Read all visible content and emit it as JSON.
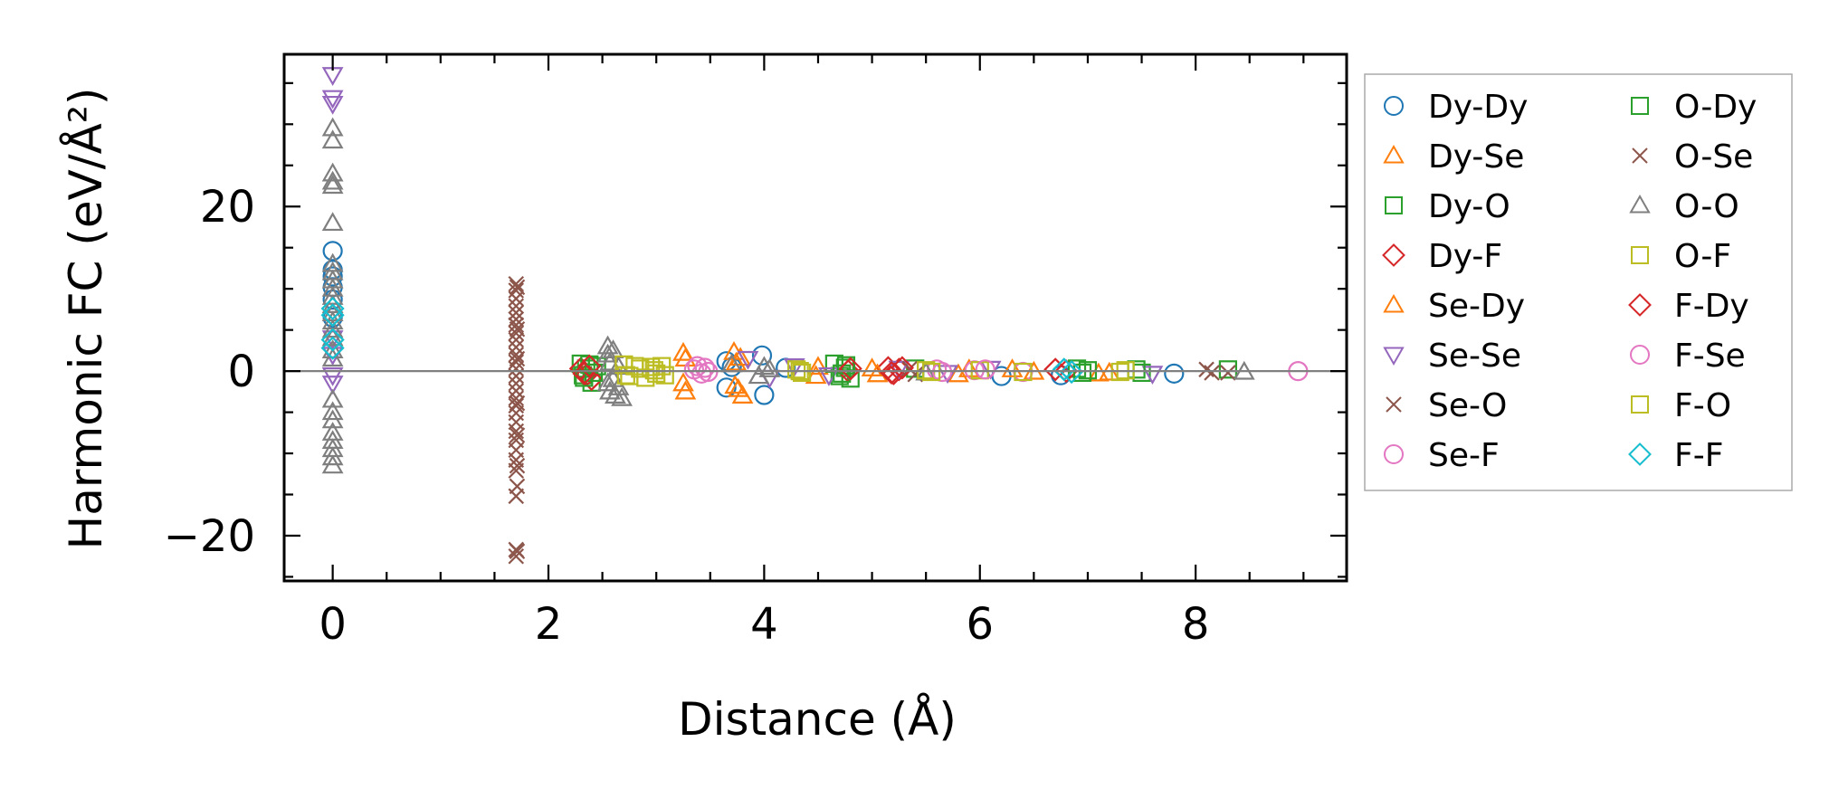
{
  "chart_data": {
    "type": "scatter",
    "xlabel": "Distance (Å)",
    "ylabel": "Harmonic FC (eV/Å²)",
    "xlim": [
      -0.45,
      9.4
    ],
    "ylim": [
      -25.5,
      38.5
    ],
    "xticks": [
      0,
      2,
      4,
      6,
      8
    ],
    "xtick_labels": [
      "0",
      "2",
      "4",
      "6",
      "8"
    ],
    "yticks": [
      -20,
      0,
      20
    ],
    "ytick_labels": [
      "−20",
      "0",
      "20"
    ],
    "grid": false,
    "zero_line": true,
    "legend_position": "outside-right",
    "legend_columns": 2,
    "series": [
      {
        "name": "Dy-Dy",
        "marker": "circle",
        "color": "#1f77b4",
        "x": [
          0,
          0,
          0,
          0,
          0,
          0,
          3.65,
          3.65,
          3.7,
          3.98,
          4.0,
          4.2,
          6.2,
          6.75,
          7.8
        ],
        "y": [
          14.6,
          12.3,
          11.5,
          10.2,
          8.7,
          6.5,
          1.2,
          -2.0,
          0.5,
          1.9,
          -2.9,
          0.4,
          -0.6,
          -0.5,
          -0.3
        ]
      },
      {
        "name": "Dy-Se",
        "marker": "triangle-up",
        "color": "#ff7f0e",
        "x": [
          3.25,
          3.25,
          3.27,
          3.72,
          3.74,
          3.76,
          3.8,
          4.5,
          5.0,
          5.8,
          6.3,
          7.1
        ],
        "y": [
          2.2,
          -1.5,
          -2.5,
          2.3,
          1.0,
          -2.2,
          -3.0,
          0.5,
          0.3,
          -0.4,
          0.2,
          -0.3
        ]
      },
      {
        "name": "Dy-O",
        "marker": "square",
        "color": "#2ca02c",
        "x": [
          2.3,
          2.32,
          2.35,
          2.4,
          2.45,
          4.65,
          4.7,
          4.75,
          4.8,
          5.4,
          6.9,
          7.0,
          7.5,
          8.3
        ],
        "y": [
          0.9,
          -0.5,
          0.3,
          -1.4,
          0.6,
          0.9,
          -0.6,
          0.4,
          -0.9,
          0.3,
          0.3,
          0.1,
          -0.2,
          0.2
        ]
      },
      {
        "name": "Dy-F",
        "marker": "diamond",
        "color": "#d62728",
        "x": [
          2.3,
          2.35,
          2.4,
          4.78,
          5.15,
          5.2,
          5.25,
          6.8
        ],
        "y": [
          0.3,
          -0.5,
          -1.0,
          0.0,
          0.4,
          -0.3,
          0.2,
          0.0
        ]
      },
      {
        "name": "Se-Dy",
        "marker": "triangle-up",
        "color": "#ff7f0e",
        "x": [
          3.27,
          3.73,
          3.78,
          4.48,
          5.05,
          5.9,
          6.5,
          7.2
        ],
        "y": [
          1.5,
          -1.8,
          1.6,
          -0.6,
          -0.4,
          0.2,
          -0.1,
          -0.2
        ]
      },
      {
        "name": "Se-Se",
        "marker": "triangle-down",
        "color": "#9467bd",
        "x": [
          0,
          0,
          0,
          0,
          0,
          0,
          0,
          3.85,
          4.05,
          4.28,
          4.6,
          5.25,
          5.7,
          6.1,
          7.6
        ],
        "y": [
          36.0,
          33.2,
          32.5,
          4.0,
          2.0,
          -0.5,
          -1.5,
          1.5,
          -0.8,
          0.6,
          -0.5,
          0.3,
          -0.2,
          0.3,
          -0.3
        ]
      },
      {
        "name": "Se-O",
        "marker": "x",
        "color": "#8c564b",
        "x": [
          1.7,
          1.7,
          1.7,
          1.7,
          1.7,
          1.7,
          1.7,
          1.7,
          1.7,
          1.7,
          1.7,
          1.7,
          1.7,
          1.7,
          1.7,
          1.7,
          1.7,
          1.7,
          1.7,
          1.7,
          1.7,
          1.7,
          1.7,
          1.7,
          1.7,
          1.7,
          1.7,
          1.7,
          5.4,
          8.1,
          8.3
        ],
        "y": [
          10.6,
          9.8,
          8.8,
          7.9,
          7.1,
          6.3,
          5.6,
          4.6,
          3.8,
          2.9,
          2.0,
          1.1,
          0.3,
          -0.6,
          -1.5,
          -2.4,
          -3.3,
          -4.2,
          -5.1,
          -6.2,
          -7.3,
          -8.4,
          -9.6,
          -10.8,
          -12.1,
          -15.2,
          -21.7,
          -22.5,
          -0.4,
          0.2,
          -0.2
        ]
      },
      {
        "name": "Se-F",
        "marker": "circle",
        "color": "#e377c2",
        "x": [
          3.35,
          3.42,
          3.45,
          5.6,
          5.95,
          6.4
        ],
        "y": [
          0.2,
          -0.3,
          0.4,
          0.2,
          0.1,
          -0.1
        ]
      },
      {
        "name": "O-Dy",
        "marker": "square",
        "color": "#2ca02c",
        "x": [
          2.33,
          2.38,
          2.42,
          4.72,
          4.76,
          6.95,
          7.45
        ],
        "y": [
          -0.8,
          0.8,
          -0.2,
          -0.3,
          0.7,
          -0.2,
          0.2
        ]
      },
      {
        "name": "O-Se",
        "marker": "x",
        "color": "#8c564b",
        "x": [
          1.71,
          1.71,
          1.71,
          1.71,
          1.71,
          1.71,
          1.71,
          1.71,
          5.35,
          8.15
        ],
        "y": [
          10.2,
          5.1,
          1.5,
          -3.9,
          -7.8,
          -11.5,
          -14.0,
          -21.9,
          0.3,
          -0.2
        ]
      },
      {
        "name": "O-O",
        "marker": "triangle-up",
        "color": "#7f7f7f",
        "x": [
          0,
          0,
          0,
          0,
          0,
          0,
          0,
          0,
          0,
          0,
          0,
          0,
          0,
          0,
          0,
          0,
          0,
          0,
          0,
          0,
          0,
          0,
          0,
          0,
          0,
          0,
          2.55,
          2.55,
          2.55,
          2.57,
          2.57,
          2.6,
          2.6,
          2.62,
          2.65,
          2.65,
          2.68,
          3.7,
          3.95,
          4.0,
          4.05,
          5.5,
          8.45
        ],
        "y": [
          29.5,
          28.0,
          24.0,
          23.0,
          22.5,
          18.0,
          13.0,
          12.0,
          11.0,
          10.0,
          9.0,
          8.0,
          7.0,
          6.0,
          5.0,
          4.0,
          2.5,
          1.5,
          -3.5,
          -5.0,
          -6.0,
          -7.5,
          -8.5,
          -9.5,
          -10.5,
          -11.5,
          3.0,
          2.0,
          -1.5,
          -2.5,
          1.0,
          2.5,
          -1.0,
          -3.0,
          -2.0,
          0.5,
          -3.3,
          0.8,
          -0.6,
          0.5,
          0.2,
          -0.2,
          -0.1
        ]
      },
      {
        "name": "O-F",
        "marker": "square",
        "color": "#bcbd22",
        "x": [
          2.7,
          2.72,
          2.85,
          2.9,
          2.95,
          3.0,
          3.05,
          4.3,
          4.35,
          5.5,
          6.0,
          6.4,
          7.3
        ],
        "y": [
          0.8,
          -0.5,
          0.3,
          -0.8,
          0.5,
          -0.3,
          0.6,
          0.2,
          -0.2,
          0.1,
          0.1,
          -0.1,
          -0.1
        ]
      },
      {
        "name": "F-Dy",
        "marker": "diamond",
        "color": "#d62728",
        "x": [
          2.33,
          2.38,
          4.8,
          5.18,
          5.28,
          6.7
        ],
        "y": [
          -0.3,
          0.6,
          0.3,
          -0.2,
          0.4,
          0.2
        ]
      },
      {
        "name": "F-Se",
        "marker": "circle",
        "color": "#e377c2",
        "x": [
          3.38,
          3.48,
          5.65,
          6.05,
          8.95
        ],
        "y": [
          0.6,
          -0.1,
          -0.1,
          0.2,
          0.0
        ]
      },
      {
        "name": "F-O",
        "marker": "square",
        "color": "#bcbd22",
        "x": [
          2.75,
          2.8,
          2.98,
          3.08,
          4.33,
          5.55,
          7.35
        ],
        "y": [
          -0.6,
          0.6,
          0.1,
          -0.5,
          0.0,
          -0.1,
          0.1
        ]
      },
      {
        "name": "F-F",
        "marker": "diamond",
        "color": "#17becf",
        "x": [
          0,
          0,
          0,
          0,
          6.78,
          6.85
        ],
        "y": [
          7.6,
          6.8,
          3.8,
          2.8,
          0.2,
          -0.1
        ]
      }
    ]
  }
}
